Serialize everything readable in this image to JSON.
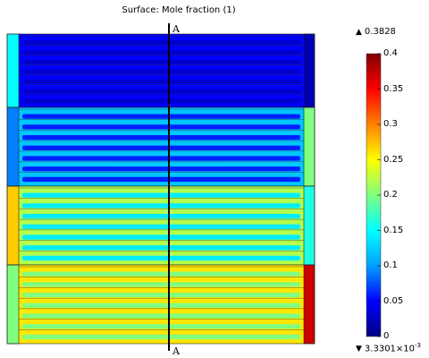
{
  "title": "Surface: Mole fraction (1)",
  "line_label_top": "A",
  "line_label_bottom": "A",
  "max_value_label": "0.3828",
  "min_value_label_mantissa": "3.3301×10",
  "min_value_label_exponent": "-3",
  "max_marker_icon": "up-triangle-icon",
  "min_marker_icon": "down-triangle-icon",
  "colorbar": {
    "min": 0,
    "max": 0.4,
    "ticks": [
      "0.4",
      "0.35",
      "0.3",
      "0.25",
      "0.2",
      "0.15",
      "0.1",
      "0.05",
      "0"
    ],
    "tick_values": [
      0.4,
      0.35,
      0.3,
      0.25,
      0.2,
      0.15,
      0.1,
      0.05,
      0
    ],
    "colors": [
      "#000080",
      "#0000ff",
      "#00a0ff",
      "#00ffff",
      "#80ff80",
      "#ffff00",
      "#ff8000",
      "#ff0000",
      "#800000"
    ]
  },
  "blocks": [
    {
      "name": "block-1",
      "base": 0.05,
      "channel": 0.03,
      "left_edge": 0.15,
      "right_edge": 0.02
    },
    {
      "name": "block-2",
      "base": 0.12,
      "channel": 0.06,
      "left_edge": 0.09,
      "right_edge": 0.2
    },
    {
      "name": "block-3",
      "base": 0.22,
      "channel": 0.14,
      "left_edge": 0.27,
      "right_edge": 0.16
    },
    {
      "name": "block-4",
      "base": 0.26,
      "channel": 0.2,
      "left_edge": 0.2,
      "right_edge": 0.37
    }
  ]
}
